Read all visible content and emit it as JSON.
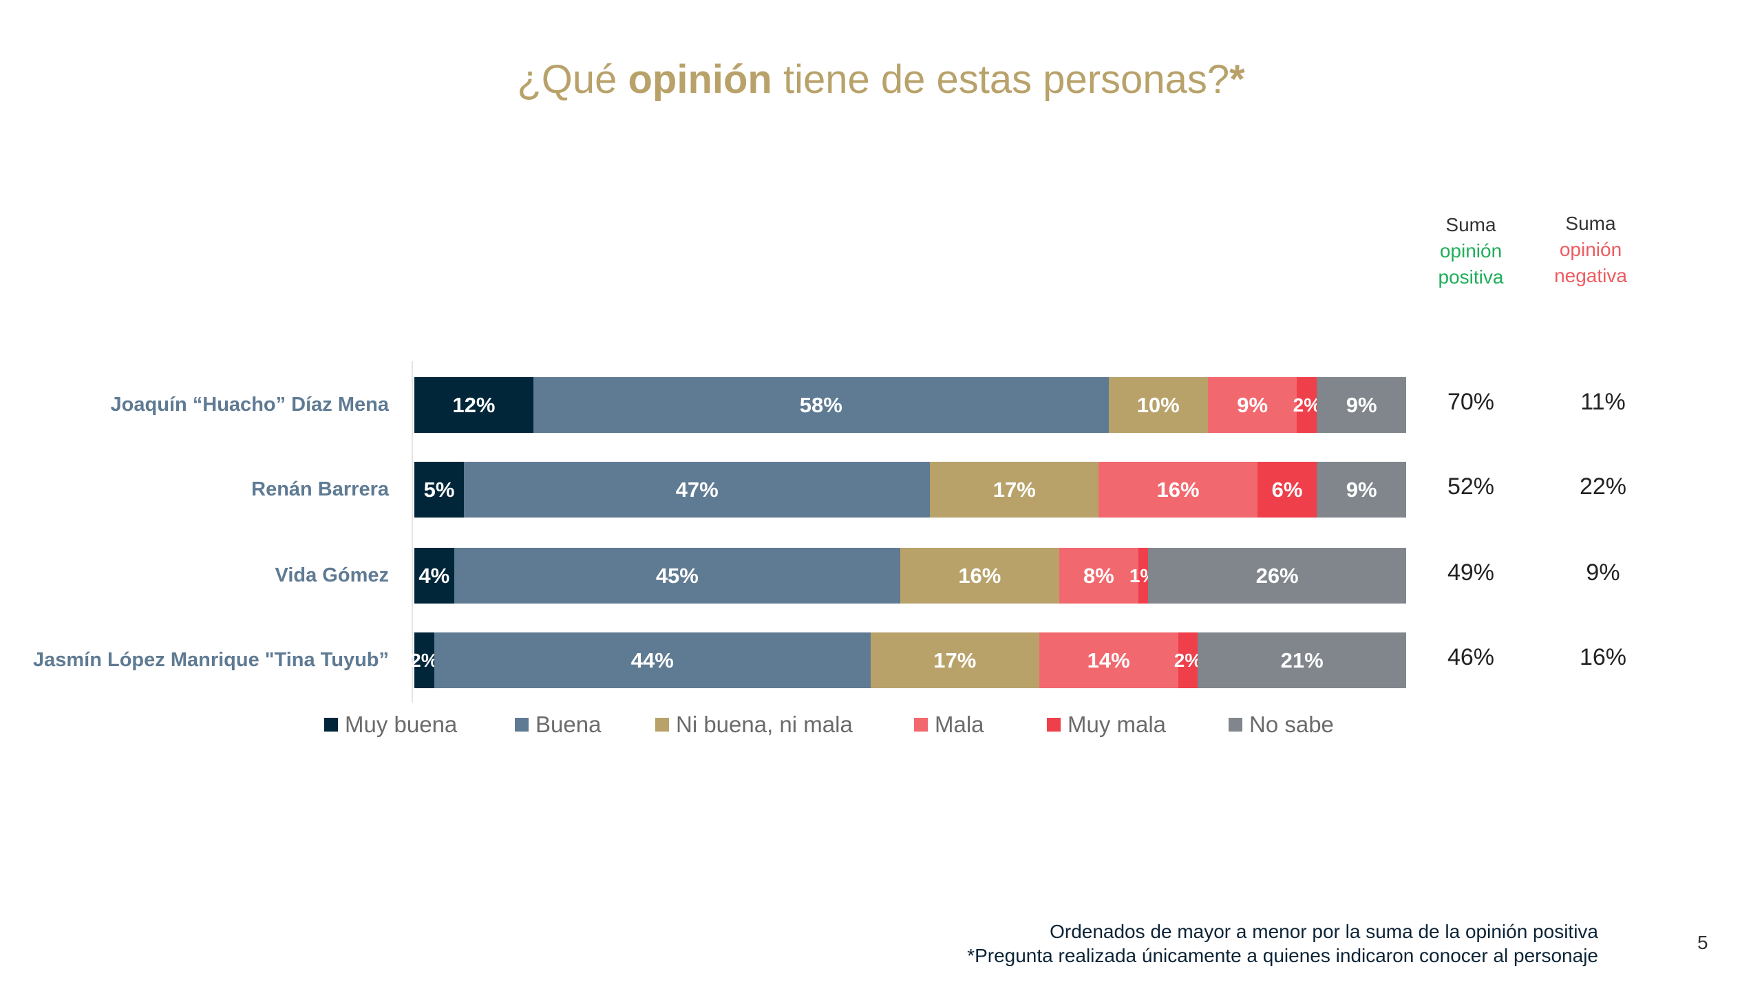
{
  "title": {
    "prefix": "¿Qué ",
    "bold": "opinión",
    "suffix": " tiene de estas personas?",
    "asterisk": "*"
  },
  "columns": {
    "positive": {
      "line1": "Suma",
      "line2": "opinión",
      "line3": "positiva",
      "color": "#1fae5a"
    },
    "negative": {
      "line1": "Suma",
      "line2": "opinión",
      "line3": "negativa",
      "color": "#ee5a5f"
    }
  },
  "chart_data": {
    "type": "bar",
    "orientation": "horizontal",
    "stacked": true,
    "unit": "%",
    "categories": [
      "Joaquín “Huacho” Díaz Mena",
      "Renán Barrera",
      "Vida Gómez",
      "Jasmín López Manrique \"Tina Tuyub”"
    ],
    "series": [
      {
        "name": "Muy buena",
        "color": "#022639",
        "values": [
          12,
          5,
          4,
          2
        ]
      },
      {
        "name": "Buena",
        "color": "#5f7b93",
        "values": [
          58,
          47,
          45,
          44
        ]
      },
      {
        "name": "Ni buena, ni mala",
        "color": "#b8a26a",
        "values": [
          10,
          17,
          16,
          17
        ]
      },
      {
        "name": "Mala",
        "color": "#f2686f",
        "values": [
          9,
          16,
          8,
          14
        ]
      },
      {
        "name": "Muy mala",
        "color": "#ee3f4a",
        "values": [
          2,
          6,
          1,
          2
        ]
      },
      {
        "name": "No sabe",
        "color": "#80868c",
        "values": [
          9,
          9,
          26,
          21
        ]
      }
    ],
    "positive_sum": [
      "70%",
      "52%",
      "49%",
      "46%"
    ],
    "negative_sum": [
      "11%",
      "22%",
      "9%",
      "16%"
    ],
    "legend_position": "bottom",
    "grid": false
  },
  "footer": {
    "line1": "Ordenados de mayor a menor por la suma de la opinión positiva",
    "line2": "*Pregunta realizada únicamente a quienes indicaron conocer al personaje"
  },
  "page_number": "5"
}
